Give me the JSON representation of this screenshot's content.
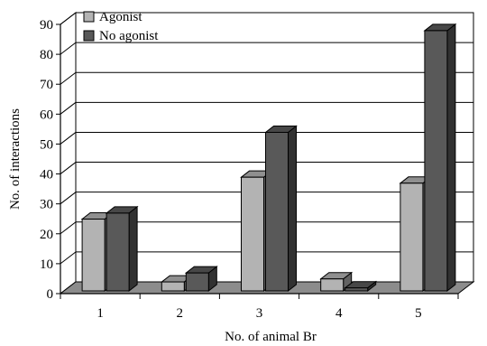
{
  "chart_data": {
    "type": "bar",
    "style": "3d-clustered-columns",
    "categories": [
      "1",
      "2",
      "3",
      "4",
      "5"
    ],
    "series": [
      {
        "name": "Agonist",
        "values": [
          24,
          3,
          38,
          4,
          36
        ],
        "color": "#b3b3b3"
      },
      {
        "name": "No agonist",
        "values": [
          26,
          6,
          53,
          1,
          87
        ],
        "color": "#595959"
      }
    ],
    "title": "",
    "xlabel": "No. of animal Br",
    "ylabel": "No. of interactions",
    "ylim": [
      0,
      90
    ],
    "yticks": [
      0,
      10,
      20,
      30,
      40,
      50,
      60,
      70,
      80,
      90
    ],
    "grid": true,
    "legend_position": "top-left",
    "floor_color": "#8c8c8c"
  }
}
